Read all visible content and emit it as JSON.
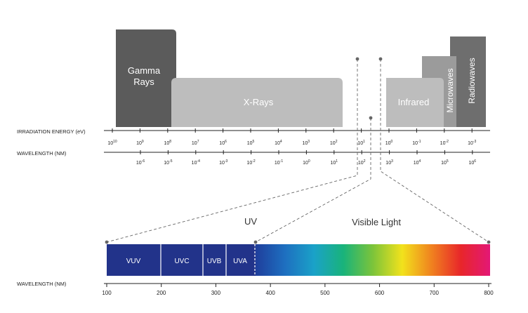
{
  "bands": {
    "gamma": {
      "line1": "Gamma",
      "line2": "Rays",
      "color": "#5b5b5b"
    },
    "xrays": {
      "label": "X-Rays",
      "color": "#bdbdbd"
    },
    "infrared": {
      "label": "Infrared",
      "color": "#bdbdbd"
    },
    "microwaves": {
      "label": "Microwaves",
      "color": "#9b9b9b"
    },
    "radiowaves": {
      "label": "Radiowaves",
      "color": "#6e6e6e"
    }
  },
  "energy_axis": {
    "label": "IRRADIATION ENERGY (eV)",
    "ticks": [
      {
        "base": "10",
        "exp": "10"
      },
      {
        "base": "10",
        "exp": "9"
      },
      {
        "base": "10",
        "exp": "8"
      },
      {
        "base": "10",
        "exp": "7"
      },
      {
        "base": "10",
        "exp": "6"
      },
      {
        "base": "10",
        "exp": "5"
      },
      {
        "base": "10",
        "exp": "4"
      },
      {
        "base": "10",
        "exp": "3"
      },
      {
        "base": "10",
        "exp": "2"
      },
      {
        "base": "10",
        "exp": "1"
      },
      {
        "base": "10",
        "exp": "0"
      },
      {
        "base": "10",
        "exp": "-1"
      },
      {
        "base": "10",
        "exp": "-2"
      },
      {
        "base": "10",
        "exp": "-3"
      }
    ]
  },
  "wavelength_axis": {
    "label": "WAVELENGTH (NM)",
    "ticks": [
      {
        "base": "10",
        "exp": "-6"
      },
      {
        "base": "10",
        "exp": "-5"
      },
      {
        "base": "10",
        "exp": "-4"
      },
      {
        "base": "10",
        "exp": "-3"
      },
      {
        "base": "10",
        "exp": "-2"
      },
      {
        "base": "10",
        "exp": "-1"
      },
      {
        "base": "10",
        "exp": "0"
      },
      {
        "base": "10",
        "exp": "1"
      },
      {
        "base": "10",
        "exp": "2"
      },
      {
        "base": "10",
        "exp": "3"
      },
      {
        "base": "10",
        "exp": "4"
      },
      {
        "base": "10",
        "exp": "5"
      },
      {
        "base": "10",
        "exp": "6"
      }
    ]
  },
  "zoom": {
    "uv_label": "UV",
    "visible_label": "Visible Light",
    "segments": [
      {
        "label": "VUV"
      },
      {
        "label": "UVC"
      },
      {
        "label": "UVB"
      },
      {
        "label": "UVA"
      }
    ],
    "axis_label": "WAVELENGTH (NM)",
    "ticks": [
      "100",
      "200",
      "300",
      "400",
      "500",
      "600",
      "700",
      "800"
    ],
    "uv_color": "#22338a",
    "spectrum_colors": [
      "#1f3e9c",
      "#1e6fc0",
      "#1aa2c8",
      "#19b37a",
      "#7cc43a",
      "#f2e21c",
      "#f0821f",
      "#e8262a",
      "#e31876"
    ]
  }
}
